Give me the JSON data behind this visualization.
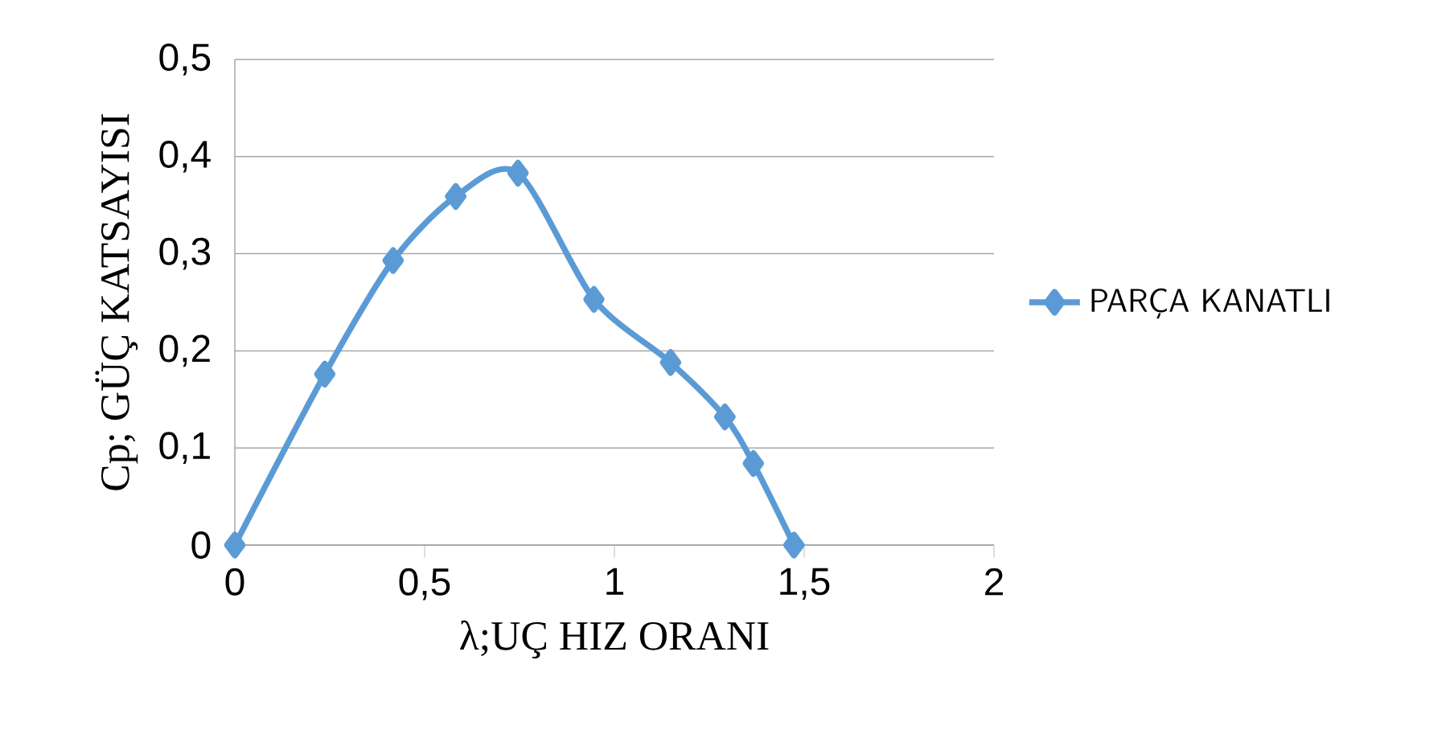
{
  "chart_data": {
    "type": "line",
    "xlabel": "λ;UÇ HIZ ORANI",
    "ylabel": "Cp; GÜÇ KATSAYISI",
    "xlim": [
      0,
      2
    ],
    "ylim": [
      0,
      0.5
    ],
    "xticks": [
      0,
      {
        "value": 0.5,
        "label": "0,5"
      },
      1,
      {
        "value": 1.5,
        "label": "1,5"
      },
      2
    ],
    "yticks": [
      0,
      {
        "value": 0.1,
        "label": "0,1"
      },
      {
        "value": 0.2,
        "label": "0,2"
      },
      {
        "value": 0.3,
        "label": "0,3"
      },
      {
        "value": 0.4,
        "label": "0,4"
      },
      {
        "value": 0.5,
        "label": "0,5"
      }
    ],
    "grid": "y",
    "legend": "right",
    "marker": "diamond",
    "series": [
      {
        "name": "PARÇA KANATLI",
        "color": "#5b9bd5",
        "x": [
          0,
          0.237,
          0.417,
          0.582,
          0.746,
          0.946,
          1.148,
          1.291,
          1.366,
          1.473
        ],
        "values": [
          0,
          0.176,
          0.293,
          0.359,
          0.383,
          0.253,
          0.188,
          0.132,
          0.084,
          0
        ]
      }
    ]
  }
}
